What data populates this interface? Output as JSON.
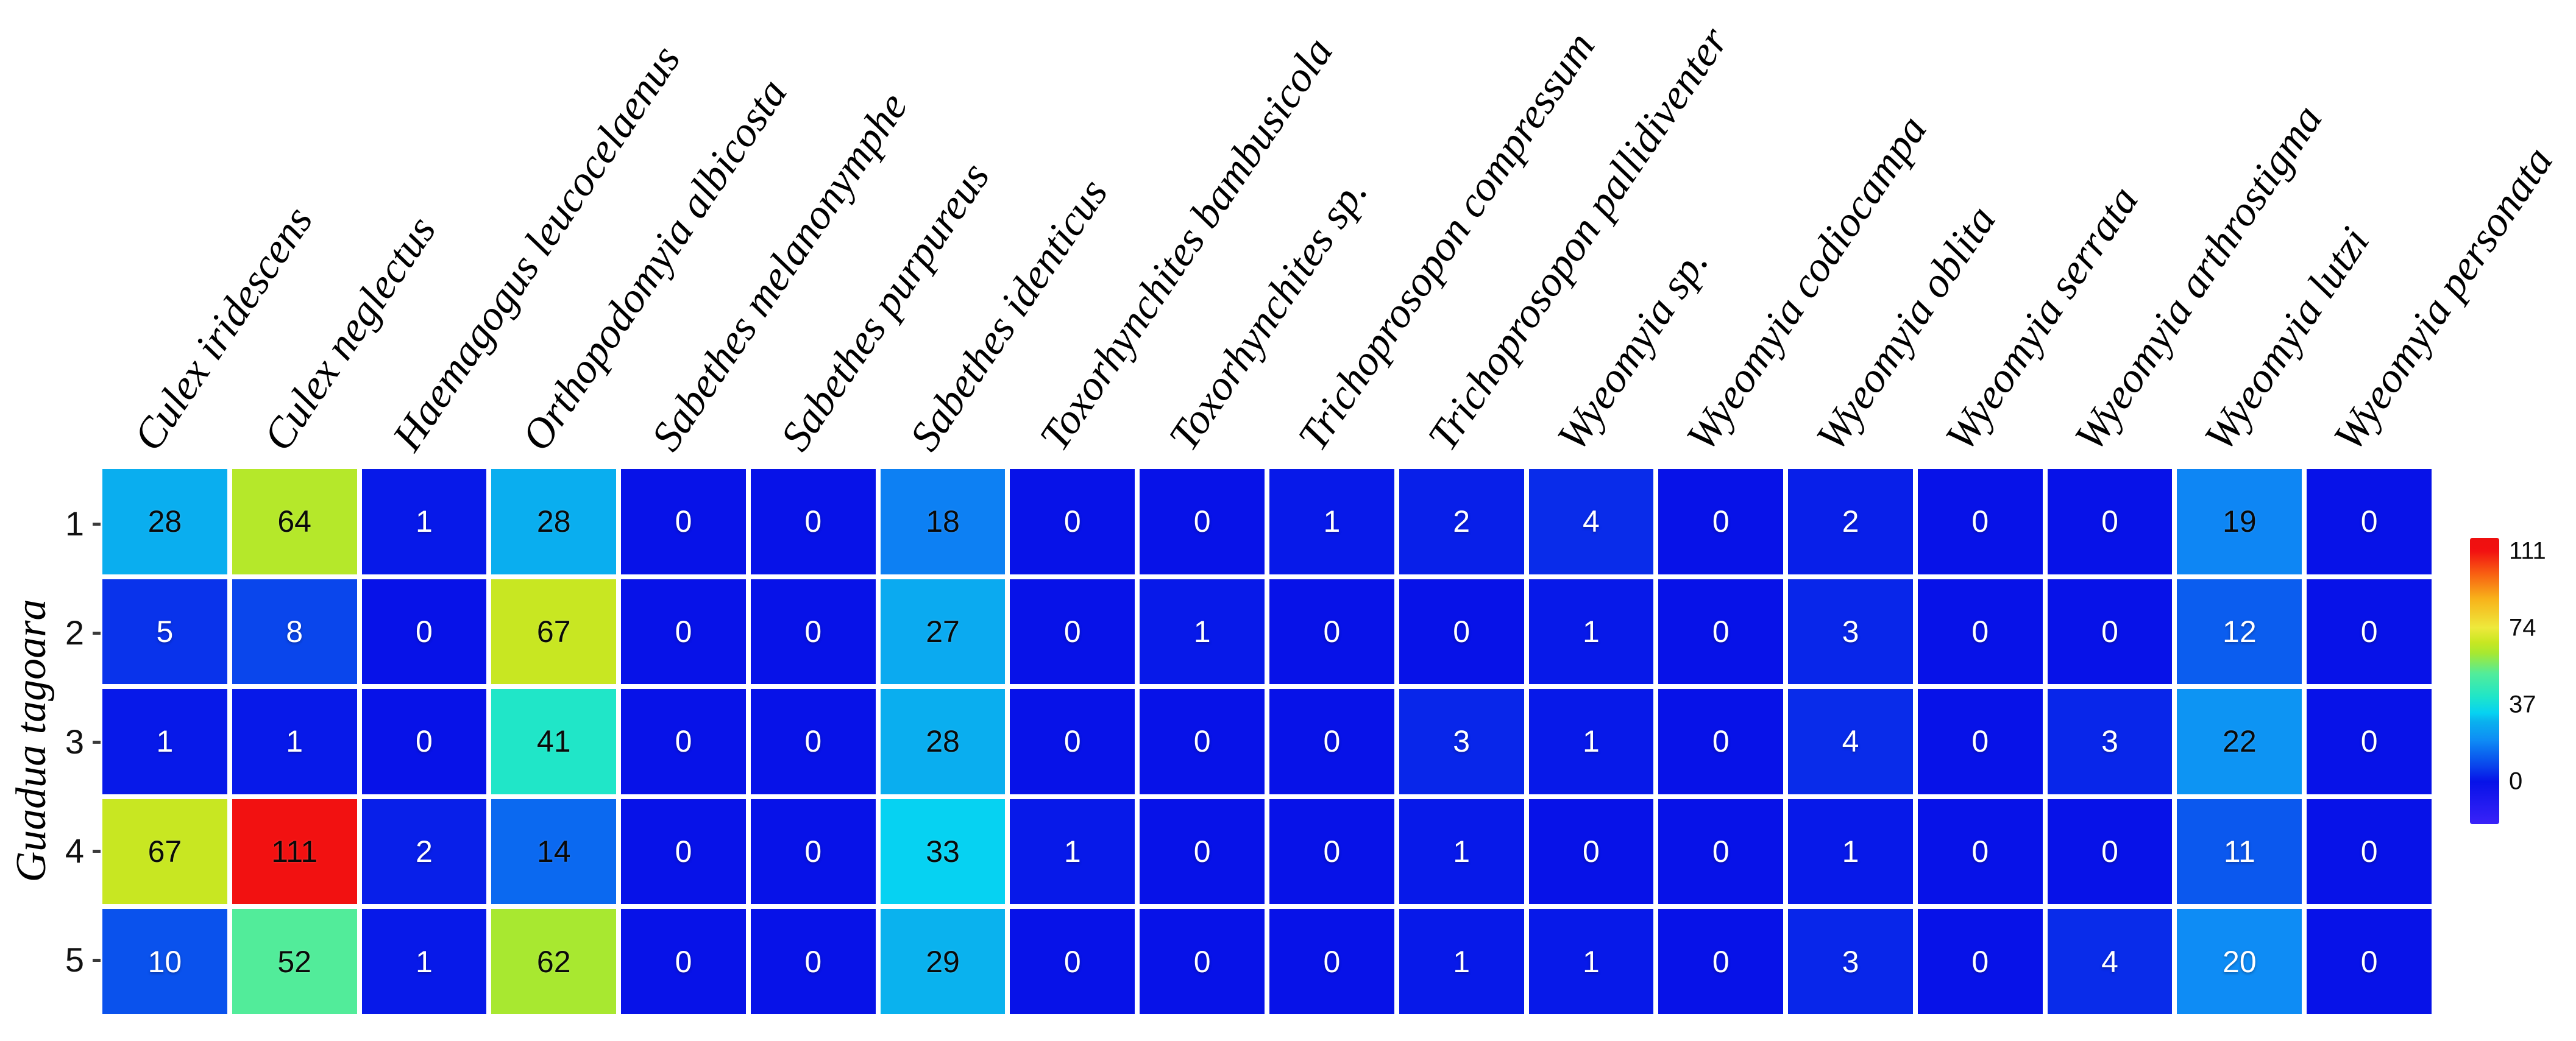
{
  "chart_data": {
    "type": "heatmap",
    "title": "",
    "xlabel": "",
    "ylabel": "Guadua tagoara",
    "rows": [
      "1",
      "2",
      "3",
      "4",
      "5"
    ],
    "columns": [
      "Culex iridescens",
      "Culex neglectus",
      "Haemagogus leucocelaenus",
      "Orthopodomyia albicosta",
      "Sabethes melanonymphe",
      "Sabethes purpureus",
      "Sabethes identicus",
      "Toxorhynchites bambusicola",
      "Toxorhynchites sp.",
      "Trichoprosopon compressum",
      "Trichoprosopon pallidiventer",
      "Wyeomyia sp.",
      "Wyeomyia codiocampa",
      "Wyeomyia oblita",
      "Wyeomyia serrata",
      "Wyeomyia arthrostigma",
      "Wyeomyia lutzi",
      "Wyeomyia personata"
    ],
    "values": [
      [
        28,
        64,
        1,
        28,
        0,
        0,
        18,
        0,
        0,
        1,
        2,
        4,
        0,
        2,
        0,
        0,
        19,
        0
      ],
      [
        5,
        8,
        0,
        67,
        0,
        0,
        27,
        0,
        1,
        0,
        0,
        1,
        0,
        3,
        0,
        0,
        12,
        0
      ],
      [
        1,
        1,
        0,
        41,
        0,
        0,
        28,
        0,
        0,
        0,
        3,
        1,
        0,
        4,
        0,
        3,
        22,
        0
      ],
      [
        67,
        111,
        2,
        14,
        0,
        0,
        33,
        1,
        0,
        0,
        1,
        0,
        0,
        1,
        0,
        0,
        11,
        0
      ],
      [
        10,
        52,
        1,
        62,
        0,
        0,
        29,
        0,
        0,
        0,
        1,
        1,
        0,
        3,
        0,
        4,
        20,
        0
      ]
    ],
    "value_text_black": [
      [
        1,
        1,
        0,
        1,
        0,
        0,
        1,
        0,
        0,
        0,
        0,
        0,
        0,
        0,
        0,
        0,
        1,
        0
      ],
      [
        0,
        0,
        0,
        1,
        0,
        0,
        1,
        0,
        0,
        0,
        0,
        0,
        0,
        0,
        0,
        0,
        0,
        0
      ],
      [
        0,
        0,
        0,
        1,
        0,
        0,
        1,
        0,
        0,
        0,
        0,
        0,
        0,
        0,
        0,
        0,
        1,
        0
      ],
      [
        1,
        1,
        0,
        1,
        0,
        0,
        1,
        0,
        0,
        0,
        0,
        0,
        0,
        0,
        0,
        0,
        0,
        0
      ],
      [
        0,
        1,
        0,
        1,
        0,
        0,
        1,
        0,
        0,
        0,
        0,
        0,
        0,
        0,
        0,
        0,
        0,
        0
      ]
    ],
    "colorbar": {
      "tick_labels": [
        "111",
        "74",
        "37",
        "0"
      ],
      "tick_values": [
        111,
        74,
        37,
        0
      ],
      "scale_top_value": 117.3,
      "scale_bottom_value": -20.4,
      "position": "right"
    },
    "colormap_name": "jet",
    "colormap_stops": [
      [
        -21,
        "#3A22F8"
      ],
      [
        0,
        "#0712E8"
      ],
      [
        8,
        "#0A46EC"
      ],
      [
        14,
        "#0B69F0"
      ],
      [
        20,
        "#0E8CF5"
      ],
      [
        29,
        "#0AB2EE"
      ],
      [
        33,
        "#06D2F2"
      ],
      [
        41,
        "#20E6C8"
      ],
      [
        52,
        "#52EC9A"
      ],
      [
        62,
        "#A8E830"
      ],
      [
        67,
        "#C8E722"
      ],
      [
        74,
        "#EEE93C"
      ],
      [
        88,
        "#F8B21A"
      ],
      [
        100,
        "#F86012"
      ],
      [
        111,
        "#F21111"
      ],
      [
        118,
        "#EE0F0F"
      ]
    ],
    "grid_lines": "white",
    "legend_position": "right"
  }
}
